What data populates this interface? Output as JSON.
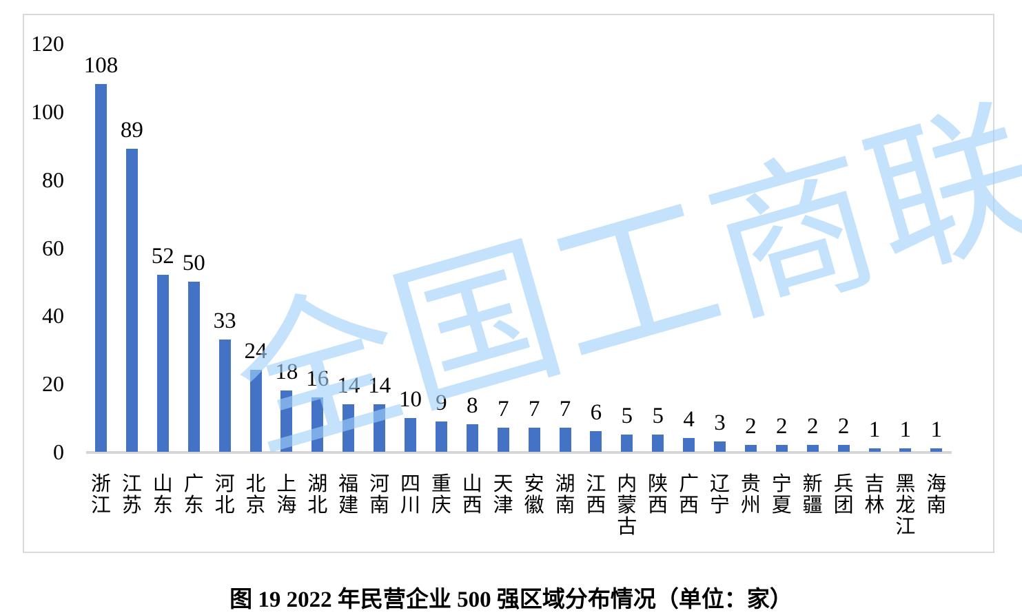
{
  "watermark": {
    "text": "全国工商联",
    "color": "#A0D0FA"
  },
  "caption": "图 19  2022 年民营企业 500 强区域分布情况（单位：家）",
  "chart_data": {
    "type": "bar",
    "title": "",
    "xlabel": "",
    "ylabel": "",
    "categories": [
      "浙江",
      "江苏",
      "山东",
      "广东",
      "河北",
      "北京",
      "上海",
      "湖北",
      "福建",
      "河南",
      "四川",
      "重庆",
      "山西",
      "天津",
      "安徽",
      "湖南",
      "江西",
      "内蒙古",
      "陕西",
      "广西",
      "辽宁",
      "贵州",
      "宁夏",
      "新疆",
      "兵团",
      "吉林",
      "黑龙江",
      "海南"
    ],
    "values": [
      108,
      89,
      52,
      50,
      33,
      24,
      18,
      16,
      14,
      14,
      10,
      9,
      8,
      7,
      7,
      7,
      6,
      5,
      5,
      4,
      3,
      2,
      2,
      2,
      2,
      1,
      1,
      1
    ],
    "value_labels_shown": true,
    "bar_color": "#4472C4",
    "axis_line_color": "#D6D6D6",
    "ylim": [
      0,
      120
    ],
    "yticks": [
      0,
      20,
      40,
      60,
      80,
      100,
      120
    ],
    "grid": false,
    "legend": "none"
  }
}
